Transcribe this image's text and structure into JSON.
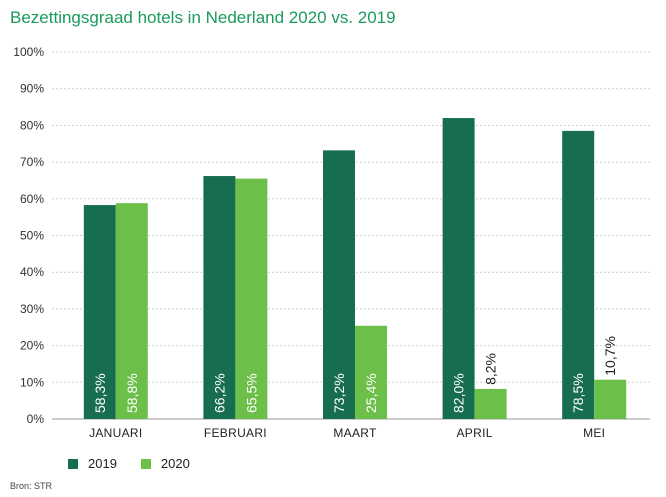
{
  "colors": {
    "series_2019": "#176e4f",
    "series_2020": "#6cc04a",
    "title": "#1a9a5c",
    "gridline": "#cfcfcf"
  },
  "chart_data": {
    "type": "bar",
    "title": "Bezettingsgraad hotels in Nederland 2020 vs. 2019",
    "xlabel": "",
    "ylabel": "",
    "ylim": [
      0,
      100
    ],
    "yticks": [
      "0%",
      "10%",
      "20%",
      "30%",
      "40%",
      "50%",
      "60%",
      "70%",
      "80%",
      "90%",
      "100%"
    ],
    "categories": [
      "JANUARI",
      "FEBRUARI",
      "MAART",
      "APRIL",
      "MEI"
    ],
    "series": [
      {
        "name": "2019",
        "values": [
          58.3,
          66.2,
          73.2,
          82.0,
          78.5
        ],
        "labels": [
          "58,3%",
          "66,2%",
          "73,2%",
          "82,0%",
          "78,5%"
        ]
      },
      {
        "name": "2020",
        "values": [
          58.8,
          65.5,
          25.4,
          8.2,
          10.7
        ],
        "labels": [
          "58,8%",
          "65,5%",
          "25,4%",
          "8,2%",
          "10,7%"
        ]
      }
    ],
    "legend_position": "bottom-left",
    "grid": true,
    "source": "Bron: STR"
  }
}
